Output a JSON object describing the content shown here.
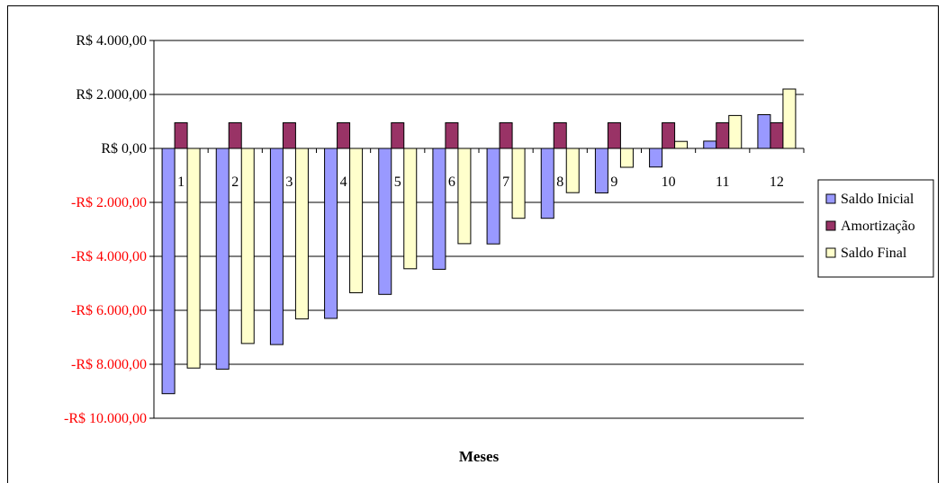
{
  "chart_data": {
    "type": "bar",
    "xlabel": "Meses",
    "ylabel": "",
    "title": "",
    "ylim": [
      -10000,
      4000
    ],
    "ytick_values": [
      4000,
      2000,
      0,
      -2000,
      -4000,
      -6000,
      -8000,
      -10000
    ],
    "ytick_labels": [
      "R$ 4.000,00",
      "R$ 2.000,00",
      "R$ 0,00",
      "-R$ 2.000,00",
      "-R$ 4.000,00",
      "-R$ 6.000,00",
      "-R$ 8.000,00",
      "-R$ 10.000,00"
    ],
    "negative_label_color": "#ff0000",
    "positive_label_color": "#000000",
    "grid": true,
    "legend_position": "right",
    "categories": [
      "1",
      "2",
      "3",
      "4",
      "5",
      "6",
      "7",
      "8",
      "9",
      "10",
      "11",
      "12"
    ],
    "series": [
      {
        "name": "Saldo Inicial",
        "color": "#9999ff",
        "values": [
          -9090,
          -8180,
          -7270,
          -6300,
          -5410,
          -4480,
          -3540,
          -2590,
          -1650,
          -690,
          270,
          1250
        ]
      },
      {
        "name": "Amortização",
        "color": "#993366",
        "values": [
          950,
          950,
          950,
          950,
          950,
          950,
          950,
          950,
          950,
          950,
          950,
          950
        ]
      },
      {
        "name": "Saldo Final",
        "color": "#ffffcc",
        "values": [
          -8140,
          -7230,
          -6320,
          -5350,
          -4460,
          -3530,
          -2590,
          -1640,
          -700,
          260,
          1220,
          2200
        ]
      }
    ]
  }
}
